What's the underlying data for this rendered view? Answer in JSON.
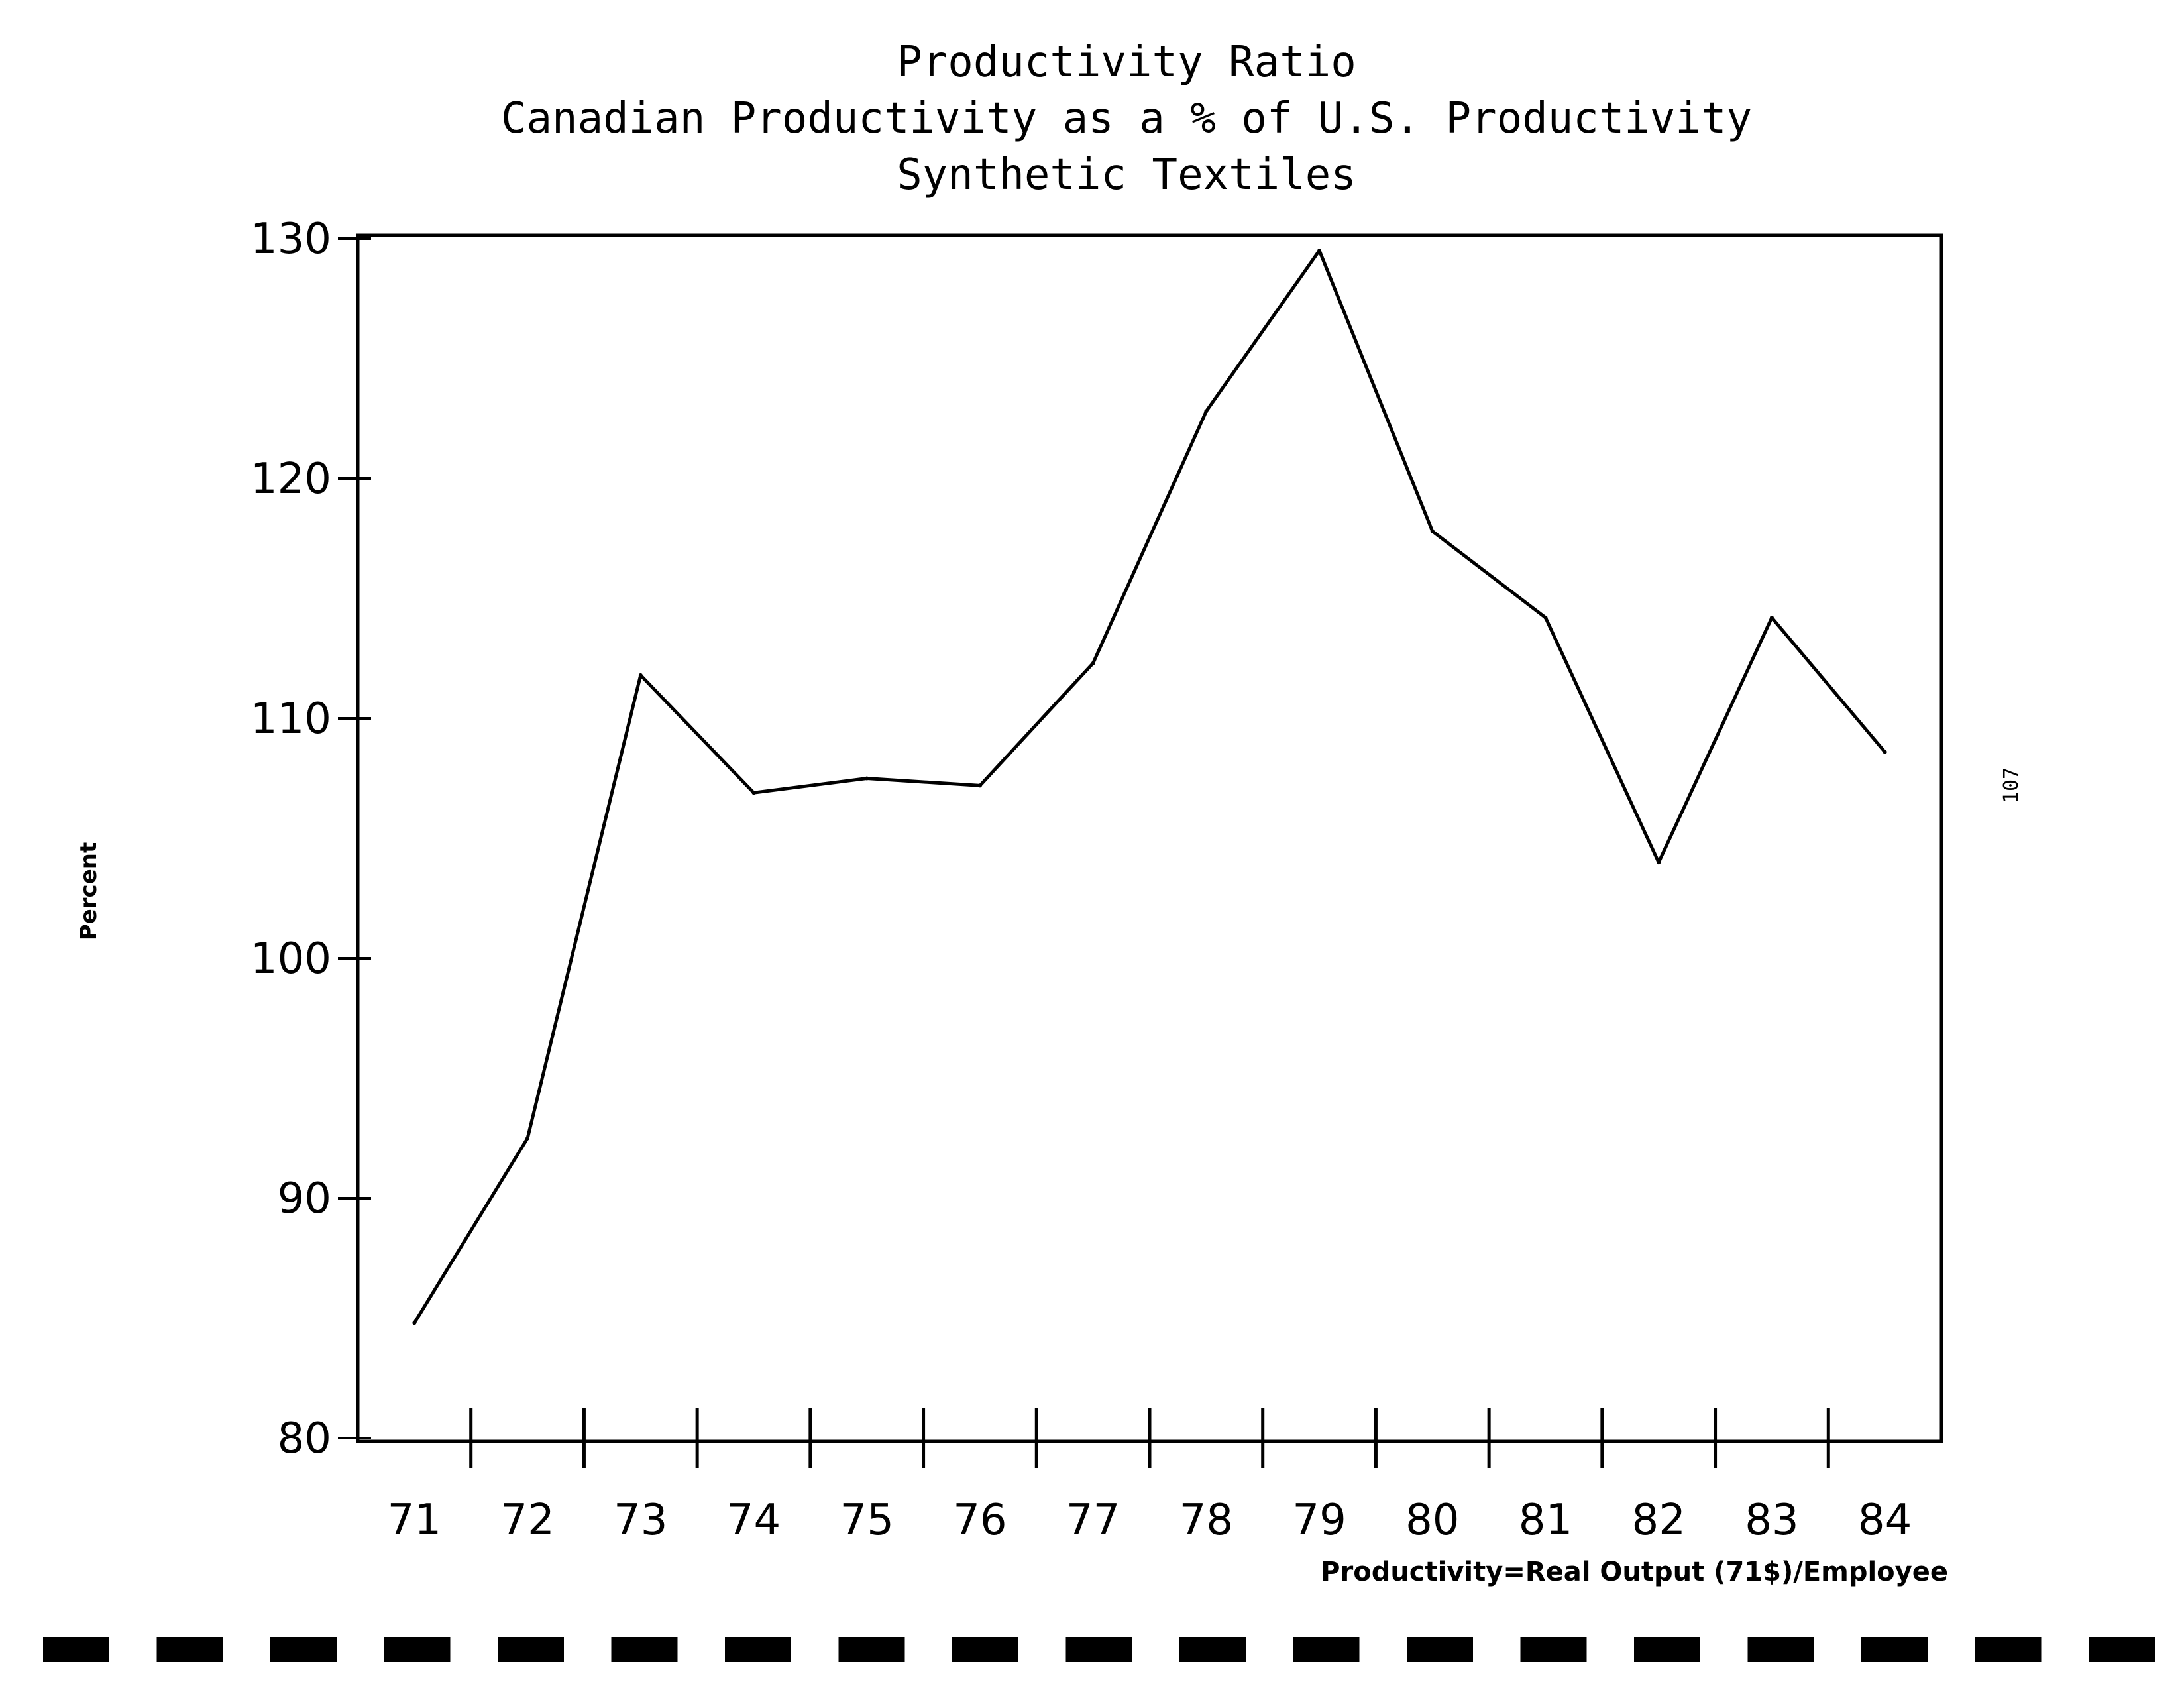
{
  "chart_data": {
    "type": "line",
    "title": "Productivity Ratio",
    "subtitle": "Canadian Productivity as a % of U.S. Productivity",
    "subtitle2": "Synthetic Textiles",
    "ylabel": "Percent",
    "xlabel": "",
    "note": "Productivity=Real Output (71$)/Employee",
    "categories": [
      "71",
      "72",
      "73",
      "74",
      "75",
      "76",
      "77",
      "78",
      "79",
      "80",
      "81",
      "82",
      "83",
      "84"
    ],
    "x": [
      71.5,
      72.5,
      73.5,
      74.5,
      75.5,
      76.5,
      77.5,
      78.5,
      79.5,
      80.5,
      81.5,
      82.5,
      83.5,
      84.5
    ],
    "values": [
      84.8,
      92.5,
      111.8,
      106.9,
      107.5,
      107.2,
      112.3,
      122.8,
      129.5,
      117.8,
      114.2,
      104.0,
      114.2,
      108.6
    ],
    "ylim": [
      80,
      130
    ],
    "yticks": [
      80,
      90,
      100,
      110,
      120,
      130
    ],
    "grid": false,
    "legend": "none",
    "line_color": "#000000"
  },
  "page_number": "107"
}
